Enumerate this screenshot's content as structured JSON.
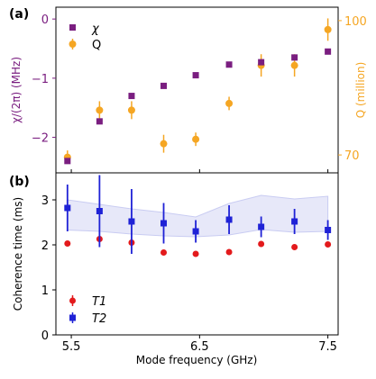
{
  "figure": {
    "colors": {
      "chi": "#7a1e80",
      "q": "#f5a623",
      "t1": "#e31a1c",
      "t2": "#1f22d6",
      "band": "#c9ccf2",
      "axis": "#000000"
    }
  },
  "chart_data": [
    {
      "panel_label": "(a)",
      "type": "scatter",
      "xlim": [
        5.38,
        7.58
      ],
      "series": [
        {
          "name": "χ",
          "axis": "left",
          "marker": "square",
          "color": "#7a1e80",
          "x": [
            5.47,
            5.72,
            5.97,
            6.22,
            6.47,
            6.73,
            6.98,
            7.24,
            7.5
          ],
          "y": [
            -2.4,
            -1.73,
            -1.3,
            -1.13,
            -0.95,
            -0.77,
            -0.73,
            -0.65,
            -0.55
          ]
        },
        {
          "name": "Q",
          "axis": "right",
          "marker": "circle",
          "color": "#f5a623",
          "x": [
            5.47,
            5.72,
            5.97,
            6.22,
            6.47,
            6.73,
            6.98,
            7.24,
            7.5
          ],
          "y": [
            69.5,
            80.0,
            80.0,
            72.5,
            73.5,
            81.5,
            90.0,
            90.0,
            98.0
          ],
          "err": [
            1.5,
            2.0,
            2.0,
            2.0,
            1.5,
            1.5,
            2.5,
            2.5,
            2.5
          ]
        }
      ],
      "ylabel_left": "χ/(2π) (MHz)",
      "ylim_left": [
        -2.6,
        0.2
      ],
      "yticks_left": [
        0,
        -1,
        -2
      ],
      "yticklabels_left": [
        "0",
        "−1",
        "−2"
      ],
      "ylabel_right": "Q (million)",
      "ylim_right": [
        66,
        103
      ],
      "yticks_right": [
        70,
        100
      ],
      "yticklabels_right": [
        "70",
        "100"
      ],
      "legend": [
        "χ",
        "Q"
      ],
      "legend_position": "top-left"
    },
    {
      "panel_label": "(b)",
      "type": "scatter",
      "xlim": [
        5.38,
        7.58
      ],
      "xticks": [
        5.5,
        6.5,
        7.5
      ],
      "xticklabels": [
        "5.5",
        "6.5",
        "7.5"
      ],
      "xlabel": "Mode frequency (GHz)",
      "ylabel": "Coherence time (ms)",
      "ylim": [
        0,
        3.6
      ],
      "yticks": [
        0,
        1,
        2,
        3
      ],
      "yticklabels": [
        "0",
        "1",
        "2",
        "3"
      ],
      "series": [
        {
          "name": "T1",
          "marker": "circle",
          "color": "#e31a1c",
          "x": [
            5.47,
            5.72,
            5.97,
            6.22,
            6.47,
            6.73,
            6.98,
            7.24,
            7.5
          ],
          "y": [
            2.03,
            2.13,
            2.05,
            1.83,
            1.8,
            1.84,
            2.02,
            1.95,
            2.01
          ]
        },
        {
          "name": "T2",
          "marker": "square",
          "color": "#1f22d6",
          "x": [
            5.47,
            5.72,
            5.97,
            6.22,
            6.47,
            6.73,
            6.98,
            7.24,
            7.5
          ],
          "y": [
            2.82,
            2.75,
            2.52,
            2.48,
            2.3,
            2.56,
            2.4,
            2.52,
            2.33
          ],
          "err": [
            0.52,
            0.8,
            0.72,
            0.45,
            0.25,
            0.32,
            0.23,
            0.28,
            0.22
          ]
        }
      ],
      "band": {
        "x": [
          5.47,
          5.72,
          5.97,
          6.22,
          6.47,
          6.73,
          6.98,
          7.24,
          7.5
        ],
        "upper": [
          3.0,
          2.9,
          2.8,
          2.72,
          2.62,
          2.92,
          3.1,
          3.02,
          3.08
        ],
        "lower": [
          2.33,
          2.3,
          2.24,
          2.2,
          2.18,
          2.22,
          2.34,
          2.28,
          2.3
        ]
      },
      "legend": [
        "T1",
        "T2"
      ],
      "legend_position": "bottom-left"
    }
  ]
}
